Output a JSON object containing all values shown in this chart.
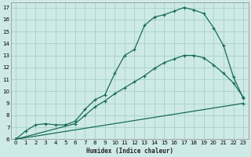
{
  "xlabel": "Humidex (Indice chaleur)",
  "bg_color": "#ceeae6",
  "grid_color": "#aad4cf",
  "line_color": "#1a6b5a",
  "xlim": [
    -0.5,
    23.5
  ],
  "ylim": [
    6,
    17.4
  ],
  "xticks": [
    0,
    1,
    2,
    3,
    4,
    5,
    6,
    7,
    8,
    9,
    10,
    11,
    12,
    13,
    14,
    15,
    16,
    17,
    18,
    19,
    20,
    21,
    22,
    23
  ],
  "yticks": [
    6,
    7,
    8,
    9,
    10,
    11,
    12,
    13,
    14,
    15,
    16,
    17
  ],
  "line1_x": [
    0,
    1,
    2,
    3,
    4,
    5,
    6,
    7,
    8,
    9,
    10,
    11,
    12,
    13,
    14,
    15,
    16,
    17,
    18,
    19,
    20,
    21,
    22,
    23
  ],
  "line1_y": [
    6.0,
    6.7,
    7.2,
    7.3,
    7.2,
    7.2,
    7.5,
    8.5,
    9.3,
    9.7,
    11.5,
    13.0,
    13.5,
    15.5,
    16.2,
    16.4,
    16.7,
    17.0,
    16.8,
    16.5,
    15.3,
    13.8,
    11.2,
    9.4
  ],
  "line2_x": [
    0,
    6,
    7,
    8,
    9,
    10,
    11,
    12,
    13,
    14,
    15,
    16,
    17,
    18,
    19,
    20,
    21,
    22,
    23
  ],
  "line2_y": [
    6.0,
    7.3,
    8.0,
    8.7,
    9.2,
    9.8,
    10.3,
    10.8,
    11.3,
    11.9,
    12.4,
    12.7,
    13.0,
    13.0,
    12.8,
    12.2,
    11.5,
    10.7,
    9.5
  ],
  "line3_x": [
    0,
    23
  ],
  "line3_y": [
    6.0,
    9.0
  ]
}
